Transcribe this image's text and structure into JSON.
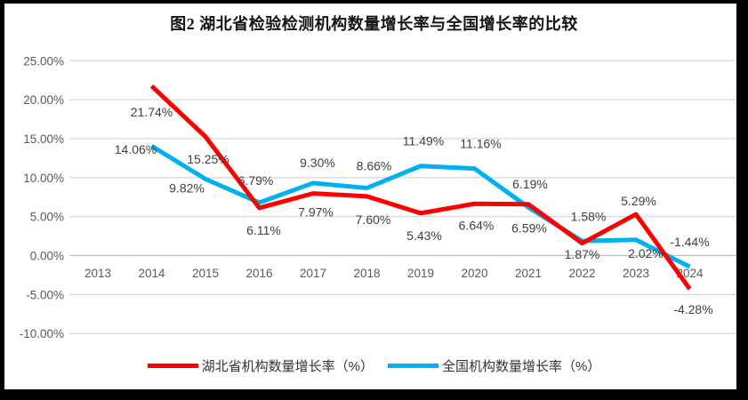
{
  "title": "图2 湖北省检验检测机构数量增长率与全国增长率的比较",
  "chart_data": {
    "type": "line",
    "title": "图2 湖北省检验检测机构数量增长率与全国增长率的比较",
    "xlabel": "",
    "ylabel": "",
    "ylim": [
      -10,
      25
    ],
    "grid": true,
    "legend_position": "bottom",
    "categories": [
      "2013",
      "2014",
      "2015",
      "2016",
      "2017",
      "2018",
      "2019",
      "2020",
      "2021",
      "2022",
      "2023",
      "2024"
    ],
    "yticks": [
      {
        "value": 25,
        "label": "25.00%"
      },
      {
        "value": 20,
        "label": "20.00%"
      },
      {
        "value": 15,
        "label": "15.00%"
      },
      {
        "value": 10,
        "label": "10.00%"
      },
      {
        "value": 5,
        "label": "5.00%"
      },
      {
        "value": 0,
        "label": "0.00%"
      },
      {
        "value": -5,
        "label": "-5.00%"
      },
      {
        "value": -10,
        "label": "-10.00%"
      }
    ],
    "series": [
      {
        "id": "hubei",
        "name": "湖北省机构数量增长率（%）",
        "color": "#FF0000",
        "values": [
          null,
          21.74,
          15.25,
          6.11,
          7.97,
          7.6,
          5.43,
          6.64,
          6.59,
          1.58,
          5.29,
          -4.28
        ],
        "labels": [
          null,
          "21.74%",
          "15.25%",
          "6.11%",
          "7.97%",
          "7.60%",
          "5.43%",
          "6.64%",
          "6.59%",
          "1.58%",
          "5.29%",
          "-4.28%"
        ],
        "label_offsets": [
          null,
          [
            0,
            34
          ],
          [
            3,
            30
          ],
          [
            5,
            30
          ],
          [
            3,
            26
          ],
          [
            7,
            31
          ],
          [
            4,
            30
          ],
          [
            2,
            29
          ],
          [
            1,
            32
          ],
          [
            7,
            -25
          ],
          [
            3,
            -10
          ],
          [
            4,
            28
          ]
        ]
      },
      {
        "id": "national",
        "name": "全国机构数量增长率（%）",
        "color": "#00B0F0",
        "values": [
          null,
          14.06,
          9.82,
          6.79,
          9.3,
          8.66,
          11.49,
          11.16,
          6.19,
          1.87,
          2.02,
          -1.44
        ],
        "labels": [
          null,
          "14.06%",
          "9.82%",
          "6.79%",
          "9.30%",
          "8.66%",
          "11.49%",
          "11.16%",
          "6.19%",
          "1.87%",
          "2.02%",
          "-1.44%"
        ],
        "label_offsets": [
          null,
          [
            -18,
            9
          ],
          [
            -21,
            15
          ],
          [
            -4,
            -20
          ],
          [
            5,
            -18
          ],
          [
            8,
            -20
          ],
          [
            3,
            -23
          ],
          [
            7,
            -23
          ],
          [
            2,
            -21
          ],
          [
            0,
            20
          ],
          [
            11,
            20
          ],
          [
            0,
            -23
          ]
        ]
      }
    ],
    "colors": {
      "grid": "#d9d9d9",
      "axis": "#bfbfbf",
      "tick_text": "#595959",
      "data_label_text": "#404040",
      "frame": "#000000",
      "background": "#ffffff"
    }
  }
}
